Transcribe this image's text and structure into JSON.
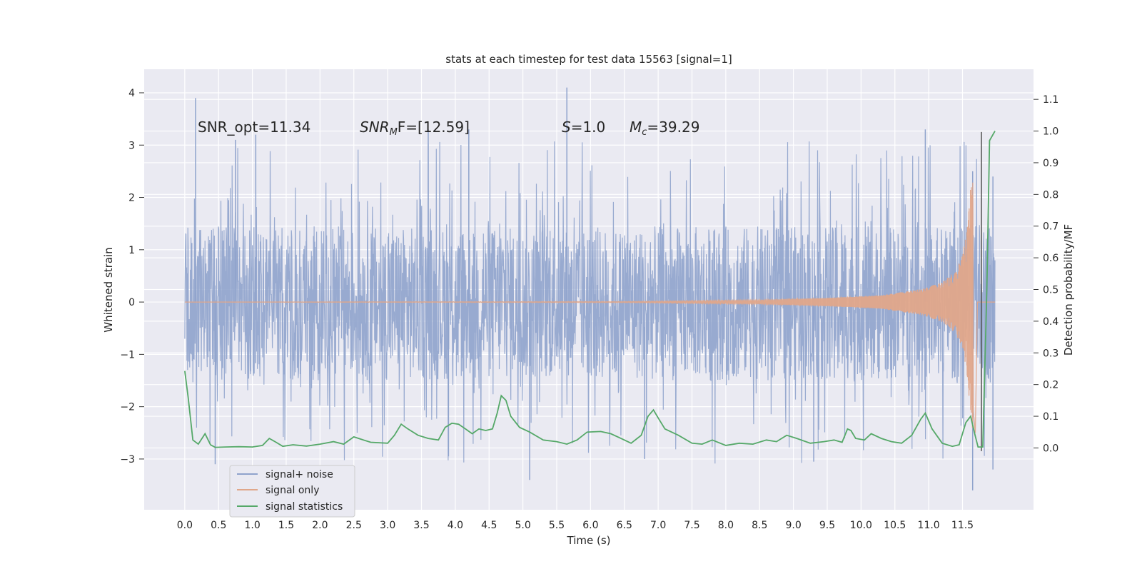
{
  "chart_data": {
    "type": "line",
    "title": "stats at each timestep for test data 15563 [signal=1]",
    "xlabel": "Time (s)",
    "ylabel": "Whitened strain",
    "y2label": "Detection probability/MF",
    "xlim": [
      -0.6,
      12.55
    ],
    "ylim": [
      -3.97,
      4.45
    ],
    "y2lim": [
      -0.195,
      1.195
    ],
    "x_ticks": [
      "0.0",
      "0.5",
      "1.0",
      "1.5",
      "2.0",
      "2.5",
      "3.0",
      "3.5",
      "4.0",
      "4.5",
      "5.0",
      "5.5",
      "6.0",
      "6.5",
      "7.0",
      "7.5",
      "8.0",
      "8.5",
      "9.0",
      "9.5",
      "10.0",
      "10.5",
      "11.0",
      "11.5"
    ],
    "y_ticks": [
      "4",
      "3",
      "2",
      "1",
      "0",
      "−1",
      "−2",
      "−3"
    ],
    "y2_ticks": [
      "1.1",
      "1.0",
      "0.9",
      "0.8",
      "0.7",
      "0.6",
      "0.5",
      "0.4",
      "0.3",
      "0.2",
      "0.1",
      "0.0"
    ],
    "grid": true,
    "legend_placement": "lower-left",
    "annotations": {
      "snr_opt": "SNR_opt=11.34",
      "snr_mf_name": "SNR",
      "snr_mf_sub": "M",
      "snr_mf_tail": "F=[12.59]",
      "s_name": "S",
      "s_value": "=1.0",
      "mc_name": "M",
      "mc_sub": "c",
      "mc_value": "=39.29"
    },
    "marker_line_x": 11.78,
    "series": [
      {
        "name": "signal+ noise",
        "color": "#8fa3cc",
        "description_values": {
          "core_band": [
            -1.5,
            1.45
          ],
          "peaks": [
            [
              0.16,
              3.9
            ],
            [
              5.65,
              4.1
            ],
            [
              3.6,
              3.3
            ],
            [
              4.2,
              3.3
            ],
            [
              1.05,
              3.2
            ],
            [
              0.75,
              3.1
            ],
            [
              10.95,
              3.3
            ],
            [
              11.65,
              2.5
            ],
            [
              11.95,
              2.4
            ]
          ],
          "troughs": [
            [
              5.1,
              -3.4
            ],
            [
              11.65,
              -3.6
            ],
            [
              11.95,
              -3.2
            ],
            [
              0.45,
              -3.1
            ],
            [
              6.8,
              -3.0
            ],
            [
              9.3,
              -3.05
            ],
            [
              3.9,
              -2.95
            ]
          ]
        }
      },
      {
        "name": "signal only",
        "color": "#e0a78a",
        "envelope": [
          [
            0.0,
            0.0
          ],
          [
            6.5,
            0.01
          ],
          [
            8.5,
            0.04
          ],
          [
            9.5,
            0.08
          ],
          [
            10.3,
            0.13
          ],
          [
            10.9,
            0.25
          ],
          [
            11.2,
            0.38
          ],
          [
            11.4,
            0.6
          ],
          [
            11.5,
            0.9
          ],
          [
            11.58,
            1.5
          ],
          [
            11.63,
            2.4
          ],
          [
            11.66,
            2.5
          ]
        ],
        "merger_x": 11.66
      },
      {
        "name": "signal statistics",
        "color": "#55a868",
        "axis": "right",
        "points": [
          [
            0.0,
            0.243
          ],
          [
            0.05,
            0.16
          ],
          [
            0.12,
            0.025
          ],
          [
            0.2,
            0.012
          ],
          [
            0.3,
            0.045
          ],
          [
            0.38,
            0.01
          ],
          [
            0.45,
            0.002
          ],
          [
            0.6,
            0.003
          ],
          [
            0.8,
            0.004
          ],
          [
            1.0,
            0.003
          ],
          [
            1.15,
            0.008
          ],
          [
            1.25,
            0.03
          ],
          [
            1.35,
            0.018
          ],
          [
            1.45,
            0.005
          ],
          [
            1.6,
            0.01
          ],
          [
            1.8,
            0.006
          ],
          [
            2.0,
            0.012
          ],
          [
            2.2,
            0.02
          ],
          [
            2.35,
            0.012
          ],
          [
            2.5,
            0.035
          ],
          [
            2.6,
            0.028
          ],
          [
            2.75,
            0.018
          ],
          [
            3.0,
            0.015
          ],
          [
            3.1,
            0.04
          ],
          [
            3.2,
            0.075
          ],
          [
            3.3,
            0.06
          ],
          [
            3.45,
            0.04
          ],
          [
            3.6,
            0.03
          ],
          [
            3.75,
            0.025
          ],
          [
            3.85,
            0.065
          ],
          [
            3.95,
            0.078
          ],
          [
            4.05,
            0.075
          ],
          [
            4.15,
            0.06
          ],
          [
            4.25,
            0.045
          ],
          [
            4.35,
            0.06
          ],
          [
            4.45,
            0.055
          ],
          [
            4.55,
            0.06
          ],
          [
            4.62,
            0.11
          ],
          [
            4.68,
            0.165
          ],
          [
            4.75,
            0.15
          ],
          [
            4.82,
            0.1
          ],
          [
            4.95,
            0.065
          ],
          [
            5.1,
            0.05
          ],
          [
            5.3,
            0.025
          ],
          [
            5.5,
            0.02
          ],
          [
            5.65,
            0.012
          ],
          [
            5.8,
            0.025
          ],
          [
            5.95,
            0.05
          ],
          [
            6.15,
            0.052
          ],
          [
            6.3,
            0.045
          ],
          [
            6.45,
            0.03
          ],
          [
            6.6,
            0.015
          ],
          [
            6.75,
            0.04
          ],
          [
            6.85,
            0.1
          ],
          [
            6.93,
            0.12
          ],
          [
            7.0,
            0.095
          ],
          [
            7.1,
            0.06
          ],
          [
            7.3,
            0.04
          ],
          [
            7.5,
            0.015
          ],
          [
            7.65,
            0.012
          ],
          [
            7.8,
            0.025
          ],
          [
            8.0,
            0.008
          ],
          [
            8.2,
            0.015
          ],
          [
            8.4,
            0.012
          ],
          [
            8.6,
            0.025
          ],
          [
            8.75,
            0.02
          ],
          [
            8.9,
            0.04
          ],
          [
            9.05,
            0.03
          ],
          [
            9.25,
            0.015
          ],
          [
            9.45,
            0.02
          ],
          [
            9.6,
            0.025
          ],
          [
            9.72,
            0.018
          ],
          [
            9.8,
            0.06
          ],
          [
            9.85,
            0.055
          ],
          [
            9.92,
            0.03
          ],
          [
            10.05,
            0.025
          ],
          [
            10.15,
            0.045
          ],
          [
            10.3,
            0.03
          ],
          [
            10.45,
            0.02
          ],
          [
            10.6,
            0.015
          ],
          [
            10.75,
            0.04
          ],
          [
            10.88,
            0.09
          ],
          [
            10.95,
            0.11
          ],
          [
            11.05,
            0.06
          ],
          [
            11.2,
            0.015
          ],
          [
            11.35,
            0.005
          ],
          [
            11.45,
            0.01
          ],
          [
            11.55,
            0.08
          ],
          [
            11.62,
            0.1
          ],
          [
            11.68,
            0.045
          ],
          [
            11.73,
            0.003
          ],
          [
            11.8,
            0.003
          ],
          [
            11.86,
            0.5
          ],
          [
            11.9,
            0.97
          ],
          [
            11.98,
            1.0
          ]
        ]
      }
    ]
  }
}
